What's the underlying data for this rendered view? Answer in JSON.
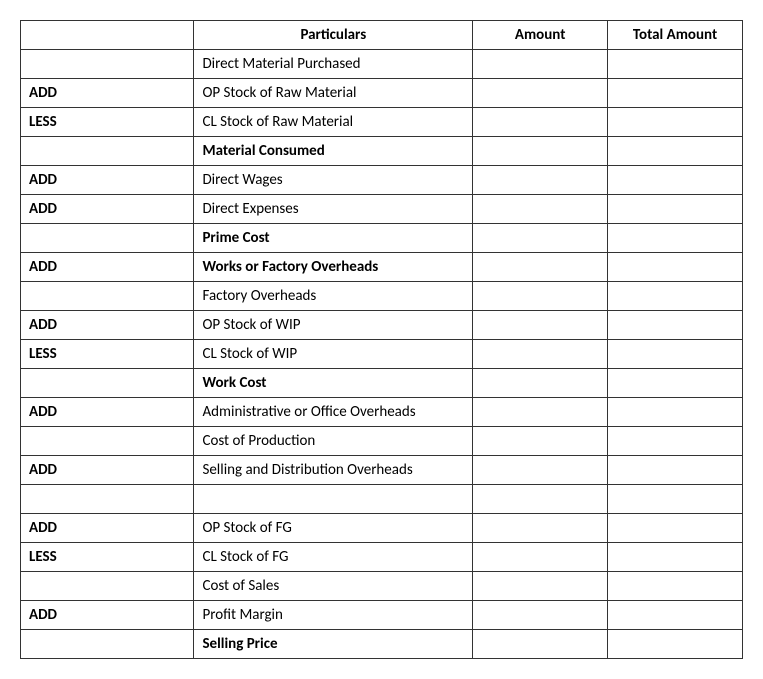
{
  "table": {
    "headers": {
      "op": "",
      "particulars": "Particulars",
      "amount": "Amount",
      "total": "Total Amount"
    },
    "rows": [
      {
        "op": "",
        "particulars": "Direct Material Purchased",
        "bold": false,
        "amount": "",
        "total": ""
      },
      {
        "op": "ADD",
        "particulars": "OP Stock of Raw Material",
        "bold": false,
        "amount": "",
        "total": ""
      },
      {
        "op": "LESS",
        "particulars": "CL Stock of Raw Material",
        "bold": false,
        "amount": "",
        "total": ""
      },
      {
        "op": "",
        "particulars": "Material Consumed",
        "bold": true,
        "amount": "",
        "total": ""
      },
      {
        "op": "ADD",
        "particulars": "Direct Wages",
        "bold": false,
        "amount": "",
        "total": ""
      },
      {
        "op": "ADD",
        "particulars": "Direct Expenses",
        "bold": false,
        "amount": "",
        "total": ""
      },
      {
        "op": "",
        "particulars": "Prime Cost",
        "bold": true,
        "amount": "",
        "total": ""
      },
      {
        "op": "ADD",
        "particulars": "Works or Factory Overheads",
        "bold": true,
        "amount": "",
        "total": ""
      },
      {
        "op": "",
        "particulars": "Factory Overheads",
        "bold": false,
        "amount": "",
        "total": ""
      },
      {
        "op": "ADD",
        "particulars": "OP Stock of WIP",
        "bold": false,
        "amount": "",
        "total": ""
      },
      {
        "op": "LESS",
        "particulars": "CL Stock of WIP",
        "bold": false,
        "amount": "",
        "total": ""
      },
      {
        "op": "",
        "particulars": "Work Cost",
        "bold": true,
        "amount": "",
        "total": ""
      },
      {
        "op": "ADD",
        "particulars": "Administrative or Office Overheads",
        "bold": false,
        "amount": "",
        "total": ""
      },
      {
        "op": "",
        "particulars": "Cost of Production",
        "bold": false,
        "amount": "",
        "total": ""
      },
      {
        "op": "ADD",
        "particulars": "Selling and Distribution Overheads",
        "bold": false,
        "amount": "",
        "total": ""
      },
      {
        "op": "",
        "particulars": "",
        "bold": false,
        "amount": "",
        "total": ""
      },
      {
        "op": "ADD",
        "particulars": "OP Stock of FG",
        "bold": false,
        "amount": "",
        "total": ""
      },
      {
        "op": "LESS",
        "particulars": "CL Stock of FG",
        "bold": false,
        "amount": "",
        "total": ""
      },
      {
        "op": "",
        "particulars": "Cost of Sales",
        "bold": false,
        "amount": "",
        "total": ""
      },
      {
        "op": "ADD",
        "particulars": "Profit Margin",
        "bold": false,
        "amount": "",
        "total": ""
      },
      {
        "op": "",
        "particulars": "Selling Price",
        "bold": true,
        "amount": "",
        "total": ""
      }
    ]
  }
}
